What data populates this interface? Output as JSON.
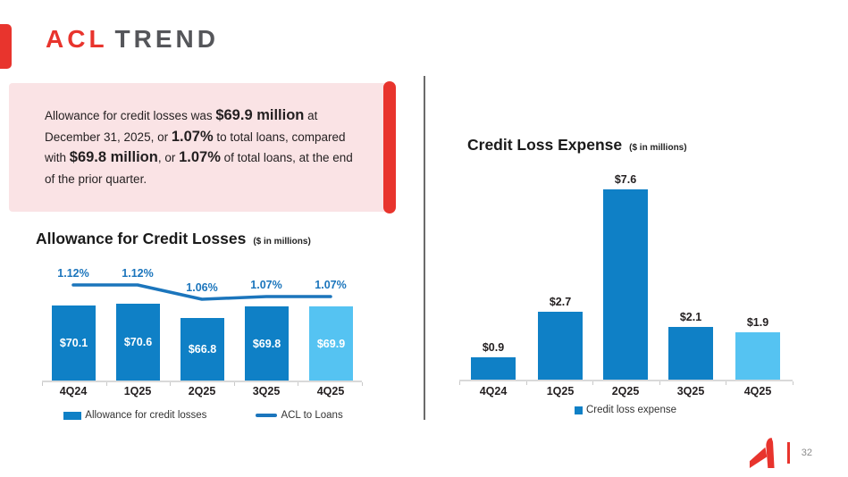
{
  "slide": {
    "title": {
      "accent": "ACL",
      "rest": "TREND"
    },
    "page_number": "32"
  },
  "callout": {
    "segments": [
      {
        "text": "Allowance for credit losses was ",
        "bold": false
      },
      {
        "text": "$69.9 million",
        "bold": true
      },
      {
        "text": " at December 31, 2025, or ",
        "bold": false
      },
      {
        "text": "1.07%",
        "bold": true
      },
      {
        "text": " to total loans, compared with ",
        "bold": false
      },
      {
        "text": "$69.8 million",
        "bold": true
      },
      {
        "text": ", or ",
        "bold": false
      },
      {
        "text": "1.07%",
        "bold": true
      },
      {
        "text": " of total loans, at the end of the prior quarter.",
        "bold": false
      }
    ]
  },
  "chart_data": [
    {
      "type": "bar",
      "title": "Allowance for Credit Losses",
      "subtitle": "($ in millions)",
      "categories": [
        "4Q24",
        "1Q25",
        "2Q25",
        "3Q25",
        "4Q25"
      ],
      "series": [
        {
          "name": "Allowance for credit losses",
          "type": "bar",
          "values": [
            70.1,
            70.6,
            66.8,
            69.8,
            69.9
          ],
          "labels": [
            "$70.1",
            "$70.6",
            "$66.8",
            "$69.8",
            "$69.9"
          ]
        },
        {
          "name": "ACL to Loans",
          "type": "line",
          "values": [
            1.12,
            1.12,
            1.06,
            1.07,
            1.07
          ],
          "labels": [
            "1.12%",
            "1.12%",
            "1.06%",
            "1.07%",
            "1.07%"
          ]
        }
      ],
      "legend": [
        "Allowance for credit losses",
        "ACL to Loans"
      ],
      "legend_position": "bottom",
      "colors": {
        "bar": "#0F80C6",
        "bar_highlight": "#55C3F2",
        "line": "#1B75BC"
      }
    },
    {
      "type": "bar",
      "title": "Credit Loss Expense",
      "subtitle": "($ in millions)",
      "categories": [
        "4Q24",
        "1Q25",
        "2Q25",
        "3Q25",
        "4Q25"
      ],
      "values": [
        0.9,
        2.7,
        7.6,
        2.1,
        1.9
      ],
      "labels": [
        "$0.9",
        "$2.7",
        "$7.6",
        "$2.1",
        "$1.9"
      ],
      "legend": [
        "Credit loss expense"
      ],
      "legend_position": "bottom",
      "colors": {
        "bar": "#0F80C6",
        "bar_highlight": "#55C3F2"
      }
    }
  ],
  "colors": {
    "accent_red": "#E8342D",
    "callout_bg": "#FAE3E5",
    "title_gray": "#55565A"
  }
}
